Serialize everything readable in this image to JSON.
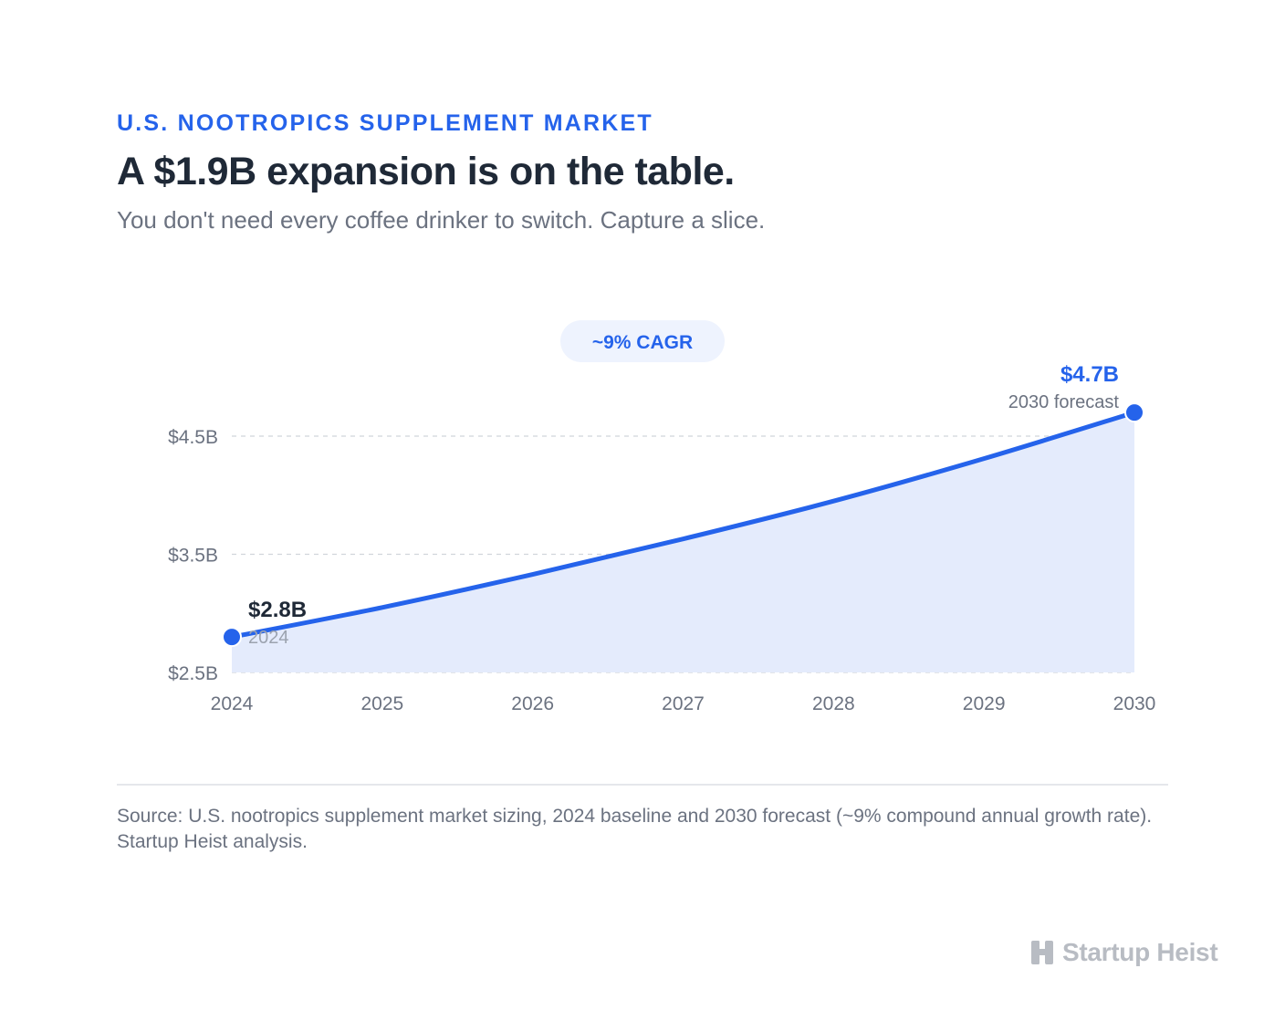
{
  "header": {
    "eyebrow": "U.S. NOOTROPICS SUPPLEMENT MARKET",
    "title": "A $1.9B expansion is on the table.",
    "subtitle": "You don't need every coffee drinker to switch. Capture a slice."
  },
  "chart_data": {
    "type": "area",
    "x": [
      2024,
      2025,
      2026,
      2027,
      2028,
      2029,
      2030
    ],
    "tick_labels": [
      "2024",
      "2025",
      "2026",
      "2027",
      "2028",
      "2029",
      "2030"
    ],
    "series": [
      {
        "values": [
          2.8,
          3.05,
          3.33,
          3.63,
          3.95,
          4.31,
          4.7
        ]
      }
    ],
    "ylim": [
      2.5,
      4.5
    ],
    "yticks": [
      2.5,
      3.5,
      4.5
    ],
    "ytick_labels": [
      "$2.5B",
      "$3.5B",
      "$4.5B"
    ],
    "grid": true,
    "badge": "~9% CAGR",
    "annotations": [
      {
        "x": 2024,
        "y": 2.8,
        "value_label": "$2.8B",
        "sub_label": "2024"
      },
      {
        "x": 2030,
        "y": 4.7,
        "value_label": "$4.7B",
        "sub_label": "2030 forecast"
      }
    ],
    "colors": {
      "line": "#2563eb",
      "area": "#e4ebfc",
      "grid": "#d1d5db",
      "tick_text": "#6b7280",
      "badge_bg": "#eef3fe",
      "start_label": "#1f2937",
      "end_label": "#2563eb"
    }
  },
  "footer": {
    "source": "Source: U.S. nootropics supplement market sizing, 2024 baseline and 2030 forecast (~9% compound annual growth rate). Startup Heist analysis."
  },
  "brand": {
    "name": "Startup Heist",
    "icon": "building-logo-icon"
  }
}
